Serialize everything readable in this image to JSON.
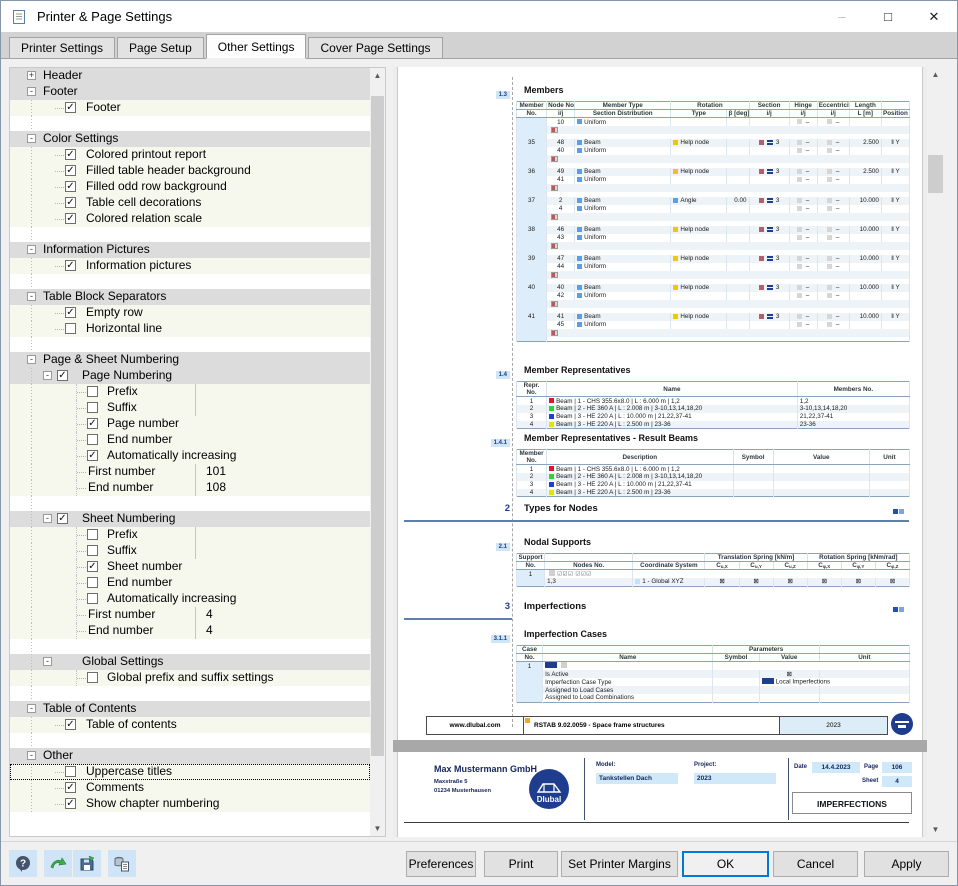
{
  "window": {
    "title": "Printer & Page Settings",
    "controls": {
      "minimize": "–",
      "maximize": "□",
      "close": "✕"
    }
  },
  "tabs": [
    {
      "label": "Printer Settings",
      "active": false
    },
    {
      "label": "Page Setup",
      "active": false
    },
    {
      "label": "Other Settings",
      "active": true
    },
    {
      "label": "Cover Page Settings",
      "active": false
    }
  ],
  "tree_rows": [
    {
      "t": "group",
      "label": "Header",
      "g": "+"
    },
    {
      "t": "group",
      "label": "Footer",
      "g": "-"
    },
    {
      "t": "leaf",
      "label": "Footer",
      "c": true
    },
    {
      "t": "spacer"
    },
    {
      "t": "group",
      "label": "Color Settings",
      "g": "-"
    },
    {
      "t": "leaf",
      "label": "Colored printout report",
      "c": true
    },
    {
      "t": "leaf",
      "label": "Filled table header background",
      "c": true
    },
    {
      "t": "leaf",
      "label": "Filled odd row background",
      "c": true
    },
    {
      "t": "leaf",
      "label": "Table cell decorations",
      "c": true
    },
    {
      "t": "leaf",
      "label": "Colored relation scale",
      "c": true
    },
    {
      "t": "spacer"
    },
    {
      "t": "group",
      "label": "Information Pictures",
      "g": "-"
    },
    {
      "t": "leaf",
      "label": "Information pictures",
      "c": true
    },
    {
      "t": "spacer"
    },
    {
      "t": "group",
      "label": "Table Block Separators",
      "g": "-"
    },
    {
      "t": "leaf",
      "label": "Empty row",
      "c": true
    },
    {
      "t": "leaf",
      "label": "Horizontal line",
      "c": false
    },
    {
      "t": "spacer"
    },
    {
      "t": "group",
      "label": "Page & Sheet Numbering",
      "g": "-"
    },
    {
      "t": "subgroup",
      "label": "Page Numbering",
      "g": "-",
      "c": true
    },
    {
      "t": "leaf2",
      "label": "Prefix",
      "c": false,
      "div": true
    },
    {
      "t": "leaf2",
      "label": "Suffix",
      "c": false,
      "div": true
    },
    {
      "t": "leaf2",
      "label": "Page number",
      "c": true
    },
    {
      "t": "leaf2",
      "label": "End number",
      "c": false
    },
    {
      "t": "leaf2",
      "label": "Automatically increasing",
      "c": true
    },
    {
      "t": "value",
      "label": "First number",
      "value": "101"
    },
    {
      "t": "value",
      "label": "End number",
      "value": "108"
    },
    {
      "t": "spacer"
    },
    {
      "t": "subgroup",
      "label": "Sheet Numbering",
      "g": "-",
      "c": true
    },
    {
      "t": "leaf2",
      "label": "Prefix",
      "c": false,
      "div": true
    },
    {
      "t": "leaf2",
      "label": "Suffix",
      "c": false,
      "div": true
    },
    {
      "t": "leaf2",
      "label": "Sheet number",
      "c": true
    },
    {
      "t": "leaf2",
      "label": "End number",
      "c": false
    },
    {
      "t": "leaf2",
      "label": "Automatically increasing",
      "c": false
    },
    {
      "t": "value",
      "label": "First number",
      "value": "4"
    },
    {
      "t": "value",
      "label": "End number",
      "value": "4"
    },
    {
      "t": "spacer"
    },
    {
      "t": "subgroup",
      "label": "Global Settings",
      "g": "-"
    },
    {
      "t": "leaf2",
      "label": "Global prefix and suffix settings",
      "c": false
    },
    {
      "t": "spacer"
    },
    {
      "t": "group",
      "label": "Table of Contents",
      "g": "-"
    },
    {
      "t": "leaf",
      "label": "Table of contents",
      "c": true
    },
    {
      "t": "spacer"
    },
    {
      "t": "group",
      "label": "Other",
      "g": "-"
    },
    {
      "t": "leaf",
      "label": "Uppercase titles",
      "c": false,
      "focus": true
    },
    {
      "t": "leaf",
      "label": "Comments",
      "c": true
    },
    {
      "t": "leaf",
      "label": "Show chapter numbering",
      "c": true
    }
  ],
  "preview": {
    "sections": {
      "members": {
        "num": "1.3",
        "title": "Members"
      },
      "member_reps": {
        "num": "1.4",
        "title": "Member Representatives"
      },
      "result_beams": {
        "num": "1.4.1",
        "title": "Member Representatives - Result Beams"
      },
      "types_for_nodes": {
        "num": "2",
        "title": "Types for Nodes"
      },
      "nodal_supports": {
        "num": "2.1",
        "title": "Nodal Supports"
      },
      "imperfections": {
        "num": "3",
        "title": "Imperfections"
      },
      "imperfection_cases": {
        "num": "3.1.1",
        "title": "Imperfection Cases"
      }
    },
    "colors": {
      "beam": "#55a0e8",
      "uniform": "#55a0e8",
      "help_node": "#f2c40f",
      "angle": "#55a0e8",
      "section": "#b4606a",
      "rep1": "#e8112d",
      "rep2": "#2fd52f",
      "rep3": "#1f3fd0",
      "rep4": "#e2e20f"
    },
    "members_table": {
      "header_row1": [
        "Member",
        "Node No.",
        "Member Type",
        "Rotation",
        "Section",
        "Hinge",
        "Eccentricity",
        "Length",
        ""
      ],
      "header_row2": [
        "No.",
        "i/j",
        "Section Distribution",
        "Type",
        "β [deg]",
        "i/j",
        "i/j",
        "i/j",
        "L [m]",
        "Position"
      ],
      "dash": "–",
      "partial_row": {
        "j": "10",
        "dist": "Uniform"
      },
      "rows": [
        {
          "no": "35",
          "i": "48",
          "j": "40",
          "type": "Beam",
          "dist": "Uniform",
          "rotation": "Help node",
          "beta": "",
          "section": "3",
          "length": "2.500",
          "position": "‖ Y"
        },
        {
          "no": "36",
          "i": "49",
          "j": "41",
          "type": "Beam",
          "dist": "Uniform",
          "rotation": "Help node",
          "beta": "",
          "section": "3",
          "length": "2.500",
          "position": "‖ Y"
        },
        {
          "no": "37",
          "i": "2",
          "j": "4",
          "type": "Beam",
          "dist": "Uniform",
          "rotation": "Angle",
          "beta": "0.00",
          "section": "3",
          "length": "10.000",
          "position": "‖ Y"
        },
        {
          "no": "38",
          "i": "46",
          "j": "43",
          "type": "Beam",
          "dist": "Uniform",
          "rotation": "Help node",
          "beta": "",
          "section": "3",
          "length": "10.000",
          "position": "‖ Y"
        },
        {
          "no": "39",
          "i": "47",
          "j": "44",
          "type": "Beam",
          "dist": "Uniform",
          "rotation": "Help node",
          "beta": "",
          "section": "3",
          "length": "10.000",
          "position": "‖ Y"
        },
        {
          "no": "40",
          "i": "40",
          "j": "42",
          "type": "Beam",
          "dist": "Uniform",
          "rotation": "Help node",
          "beta": "",
          "section": "3",
          "length": "10.000",
          "position": "‖ Y"
        },
        {
          "no": "41",
          "i": "41",
          "j": "45",
          "type": "Beam",
          "dist": "Uniform",
          "rotation": "Help node",
          "beta": "",
          "section": "3",
          "length": "10.000",
          "position": "‖ Y"
        }
      ]
    },
    "rep_table": {
      "headers": {
        "c1a": "Repr.",
        "c1b": "No.",
        "name": "Name",
        "members": "Members No."
      },
      "rows": [
        {
          "no": "1",
          "color": "#e8112d",
          "name": "Beam | 1 - CHS 355.6x8.0 | L : 6.000 m | 1,2",
          "members": "1,2"
        },
        {
          "no": "2",
          "color": "#2fd52f",
          "name": "Beam | 2 - HE 360 A | L : 2.008 m | 3-10,13,14,18,20",
          "members": "3-10,13,14,18,20"
        },
        {
          "no": "3",
          "color": "#1f3fd0",
          "name": "Beam | 3 - HE 220 A | L : 10.000 m | 21,22,37-41",
          "members": "21,22,37-41"
        },
        {
          "no": "4",
          "color": "#e2e20f",
          "name": "Beam | 3 - HE 220 A | L : 2.500 m | 23-36",
          "members": "23-36"
        }
      ]
    },
    "result_table": {
      "headers": {
        "c1a": "Member",
        "c1b": "No.",
        "desc": "Description",
        "symbol": "Symbol",
        "value": "Value",
        "unit": "Unit"
      }
    },
    "supports_table": {
      "headers": {
        "c1a": "Support",
        "c1b": "No.",
        "nodes": "Nodes No.",
        "coord": "Coordinate System",
        "trans": "Translation Spring [kN/m]",
        "rot": "Rotation Spring [kNm/rad]",
        "cols": [
          "Cu,X",
          "Cu,Y",
          "Cu,Z",
          "Cφ,X",
          "Cφ,Y",
          "Cφ,Z"
        ]
      },
      "row": {
        "no": "1",
        "boxes": "☑☑☑  ☑☑☑",
        "nodes": "1,3",
        "coord": "1 - Global XYZ",
        "mark": "⊠"
      }
    },
    "imp_table": {
      "headers": {
        "c1a": "Case",
        "c1b": "No.",
        "name": "Name",
        "params": "Parameters",
        "symbol": "Symbol",
        "value": "Value",
        "unit": "Unit"
      },
      "case_no": "1",
      "rows": [
        {
          "name": "Is Active",
          "value": "⊠",
          "mark": true
        },
        {
          "name": "Imperfection Case Type",
          "value": "Local Imperfections",
          "tag": true
        },
        {
          "name": "Assigned to Load Cases",
          "value": ""
        },
        {
          "name": "Assigned to Load Combinations",
          "value": ""
        }
      ]
    },
    "page_footer": {
      "url": "www.dlubal.com",
      "program": "RSTAB 9.02.0059 - Space frame structures",
      "year": "2023"
    },
    "page2": {
      "company": "Max Mustermann GmbH",
      "address1": "Maxstraße 5",
      "address2": "01234 Musterhausen",
      "logo": "Dlubal",
      "model_label": "Model:",
      "model": "Tankstellen Dach",
      "project_label": "Project:",
      "project": "2023",
      "date_label": "Date",
      "date": "14.4.2023",
      "page_label": "Page",
      "page": "106",
      "sheet_label": "Sheet",
      "sheet": "4",
      "title": "IMPERFECTIONS"
    }
  },
  "footer": {
    "icons": [
      "help-icon",
      "transfer-icon",
      "save-icon",
      "copy-icon"
    ],
    "buttons": [
      {
        "label": "Preferences"
      },
      {
        "label": "Print"
      },
      {
        "label": "Set Printer Margins"
      },
      {
        "label": "OK",
        "default": true
      },
      {
        "label": "Cancel"
      },
      {
        "label": "Apply"
      }
    ]
  }
}
